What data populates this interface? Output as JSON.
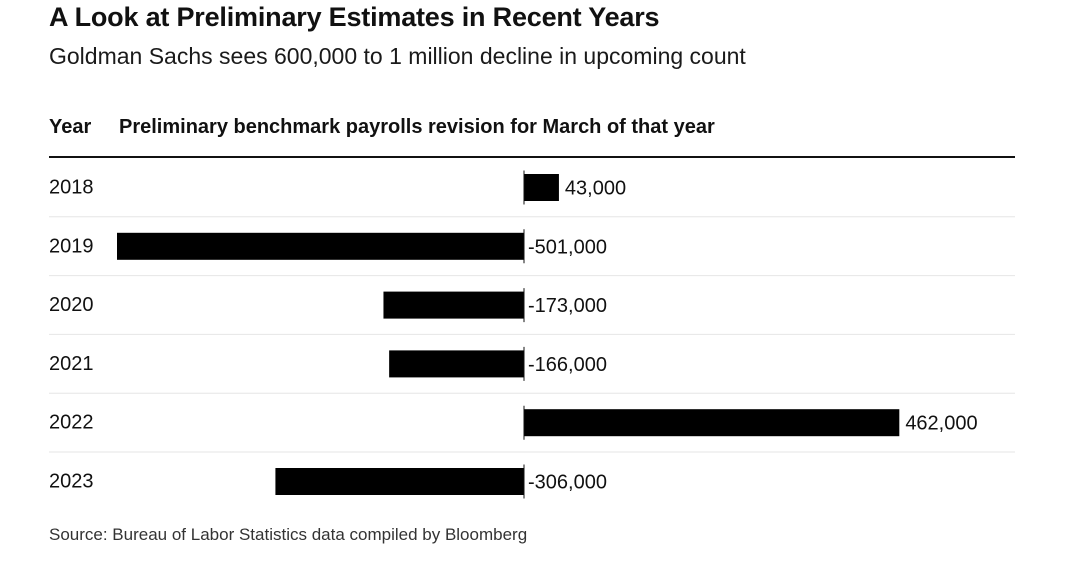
{
  "title": "A Look at Preliminary Estimates in Recent Years",
  "subtitle": "Goldman Sachs sees 600,000 to 1 million decline in upcoming count",
  "columns": {
    "year": "Year",
    "revision": "Preliminary benchmark payrolls revision for March of that year"
  },
  "source": "Source: Bureau of Labor Statistics data compiled by Bloomberg",
  "colors": {
    "bar": "#000000",
    "rule": "#111111",
    "row_divider": "#e6e6e6"
  },
  "chart_data": {
    "type": "bar",
    "orientation": "horizontal",
    "categories": [
      "2018",
      "2019",
      "2020",
      "2021",
      "2022",
      "2023"
    ],
    "values": [
      43000,
      -501000,
      -173000,
      -166000,
      462000,
      -306000
    ],
    "value_labels": [
      "43,000",
      "-501,000",
      "-173,000",
      "-166,000",
      "462,000",
      "-306,000"
    ],
    "xlim": [
      -501000,
      462000
    ],
    "grid": false,
    "legend": "none"
  }
}
